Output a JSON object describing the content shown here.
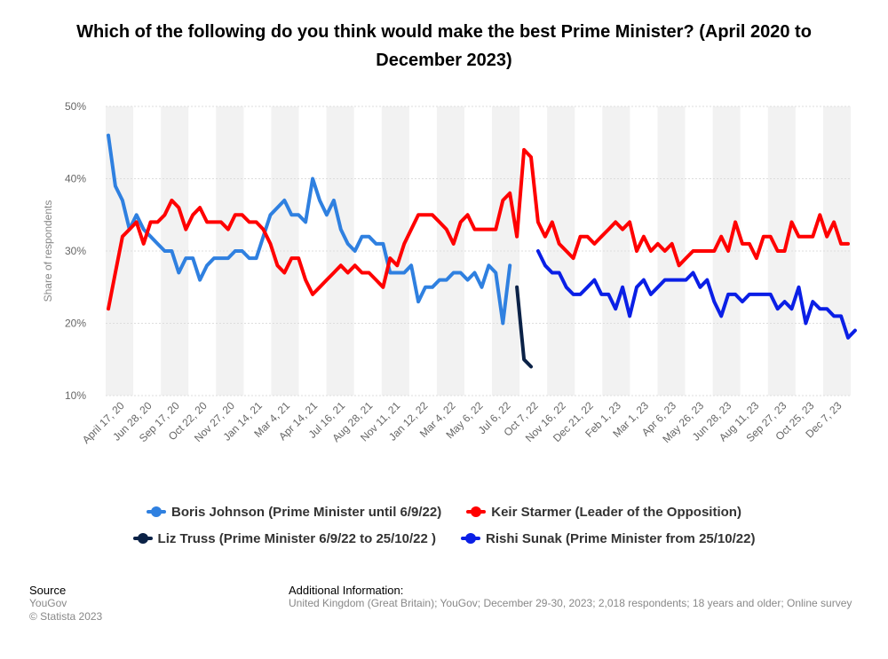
{
  "chart_data": {
    "type": "line",
    "title": "Which of the following do you think would make the best Prime Minister? (April 2020 to December 2023)",
    "ylabel": "Share of respondents",
    "ylim": [
      10,
      50
    ],
    "yticks": [
      "10%",
      "20%",
      "30%",
      "40%",
      "50%"
    ],
    "grid": true,
    "legend_position": "bottom",
    "xtick_labels": [
      "April 17, 20",
      "Jun 28, 20",
      "Sep 17, 20",
      "Oct 22, 20",
      "Nov 27, 20",
      "Jan 14, 21",
      "Mar 4, 21",
      "Apr 14, 21",
      "Jul 16, 21",
      "Aug 28, 21",
      "Nov 11, 21",
      "Jan 12, 22",
      "Mar 4, 22",
      "May 6, 22",
      "Jul 6, 22",
      "Oct 7, 22",
      "Nov 16, 22",
      "Dec 21, 22",
      "Feb 1, 23",
      "Mar 1, 23",
      "Apr 6, 23",
      "May 26, 23",
      "Jun 28, 23",
      "Aug 11, 23",
      "Sep 27, 23",
      "Oct 25, 23",
      "Dec 7, 23"
    ],
    "series": [
      {
        "name": "Boris Johnson (Prime Minister until 6/9/22)",
        "color": "#2f80e0",
        "start_index": 0,
        "values": [
          46,
          39,
          37,
          33,
          35,
          33,
          32,
          31,
          30,
          30,
          27,
          29,
          29,
          26,
          28,
          29,
          29,
          29,
          30,
          30,
          29,
          29,
          32,
          35,
          36,
          37,
          35,
          35,
          34,
          40,
          37,
          35,
          37,
          33,
          31,
          30,
          32,
          32,
          31,
          31,
          27,
          27,
          27,
          28,
          23,
          25,
          25,
          26,
          26,
          27,
          27,
          26,
          27,
          25,
          28,
          27,
          20,
          28
        ]
      },
      {
        "name": "Keir Starmer (Leader of the Opposition)",
        "color": "#ff0000",
        "start_index": 0,
        "values": [
          22,
          27,
          32,
          33,
          34,
          31,
          34,
          34,
          35,
          37,
          36,
          33,
          35,
          36,
          34,
          34,
          34,
          33,
          35,
          35,
          34,
          34,
          33,
          31,
          28,
          27,
          29,
          29,
          26,
          24,
          25,
          26,
          27,
          28,
          27,
          28,
          27,
          27,
          26,
          25,
          29,
          28,
          31,
          33,
          35,
          35,
          35,
          34,
          33,
          31,
          34,
          35,
          33,
          33,
          33,
          33,
          37,
          38,
          32,
          44,
          43,
          34,
          32,
          34,
          31,
          30,
          29,
          32,
          32,
          31,
          32,
          33,
          34,
          33,
          34,
          30,
          32,
          30,
          31,
          30,
          31,
          28,
          29,
          30,
          30,
          30,
          30,
          32,
          30,
          34,
          31,
          31,
          29,
          32,
          32,
          30,
          30,
          34,
          32,
          32,
          32,
          35,
          32,
          34,
          31,
          31
        ]
      },
      {
        "name": "Liz Truss (Prime Minister 6/9/22 to 25/10/22 )",
        "color": "#0b2247",
        "start_index": 58,
        "values": [
          25,
          15,
          14
        ]
      },
      {
        "name": "Rishi Sunak (Prime Minister from 25/10/22)",
        "color": "#0a1fe6",
        "start_index": 61,
        "values": [
          30,
          28,
          27,
          27,
          25,
          24,
          24,
          25,
          26,
          24,
          24,
          22,
          25,
          21,
          25,
          26,
          24,
          25,
          26,
          26,
          26,
          26,
          27,
          25,
          26,
          23,
          21,
          24,
          24,
          23,
          24,
          24,
          24,
          24,
          22,
          23,
          22,
          25,
          20,
          23,
          22,
          22,
          21,
          21,
          18,
          19
        ]
      }
    ]
  },
  "source": {
    "heading": "Source",
    "lines": [
      "YouGov",
      "© Statista 2023"
    ]
  },
  "additional_info": {
    "heading": "Additional Information:",
    "text": "United Kingdom (Great Britain); YouGov; December 29-30, 2023; 2,018 respondents; 18 years and older; Online survey"
  }
}
